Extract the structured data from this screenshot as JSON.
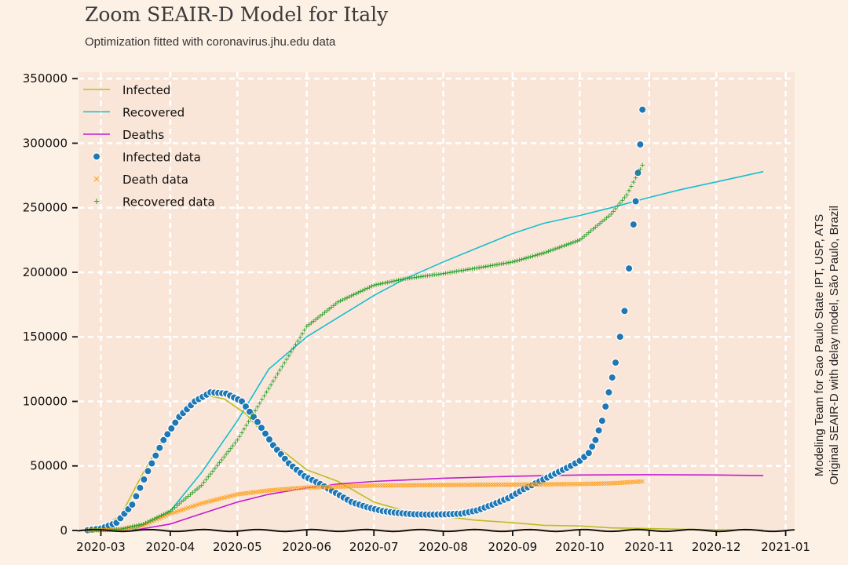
{
  "header": {
    "title": "Zoom SEAIR-D Model for Italy",
    "subtitle": "Optimization fitted with coronavirus.jhu.edu data"
  },
  "side_note": {
    "line1": "Modeling Team for Sao Paulo State IPT, USP, ATS",
    "line2": "Original SEAIR-D with delay model, São Paulo, Brazil"
  },
  "colors": {
    "background": "#fdf1e6",
    "plot_background": "#fae6d8",
    "grid": "#ffffff",
    "infected_model": "#bcbd22",
    "recovered_model": "#17becf",
    "deaths_model": "#c21bd1",
    "infected_data": "#1f77b4",
    "death_data": "#ff9f1c",
    "recovered_data": "#2ca02c"
  },
  "chart_data": {
    "type": "line",
    "title": "Zoom SEAIR-D Model for Italy",
    "subtitle": "Optimization fitted with coronavirus.jhu.edu data",
    "xlabel": "",
    "ylabel": "",
    "x_type": "date",
    "xlim": [
      "2020-02-20",
      "2021-01-05"
    ],
    "ylim": [
      0,
      355000
    ],
    "grid": true,
    "legend_position": "top-left",
    "x_ticks": [
      "2020-03-01",
      "2020-04-01",
      "2020-05-01",
      "2020-06-01",
      "2020-07-01",
      "2020-08-01",
      "2020-09-01",
      "2020-10-01",
      "2020-11-01",
      "2020-12-01",
      "2021-01-01"
    ],
    "x_tick_labels": [
      "2020-03",
      "2020-04",
      "2020-05",
      "2020-06",
      "2020-07",
      "2020-08",
      "2020-09",
      "2020-10",
      "2020-11",
      "2020-12",
      "2021-01"
    ],
    "y_ticks": [
      0,
      50000,
      100000,
      150000,
      200000,
      250000,
      300000,
      350000
    ],
    "y_tick_labels": [
      "0",
      "50000",
      "100000",
      "150000",
      "200000",
      "250000",
      "300000",
      "350000"
    ],
    "series": [
      {
        "name": "Infected",
        "kind": "line",
        "points": [
          [
            "2020-02-22",
            0
          ],
          [
            "2020-03-01",
            2000
          ],
          [
            "2020-03-10",
            12000
          ],
          [
            "2020-03-20",
            45000
          ],
          [
            "2020-04-01",
            80000
          ],
          [
            "2020-04-10",
            98000
          ],
          [
            "2020-04-19",
            104000
          ],
          [
            "2020-04-25",
            102000
          ],
          [
            "2020-05-05",
            90000
          ],
          [
            "2020-05-15",
            70000
          ],
          [
            "2020-06-01",
            47000
          ],
          [
            "2020-06-15",
            38000
          ],
          [
            "2020-07-01",
            22000
          ],
          [
            "2020-07-15",
            15000
          ],
          [
            "2020-08-01",
            11000
          ],
          [
            "2020-08-15",
            8000
          ],
          [
            "2020-09-01",
            6000
          ],
          [
            "2020-09-15",
            4000
          ],
          [
            "2020-10-01",
            3500
          ],
          [
            "2020-10-15",
            2000
          ],
          [
            "2020-11-01",
            1500
          ],
          [
            "2020-11-15",
            1000
          ],
          [
            "2020-12-01",
            600
          ],
          [
            "2020-12-22",
            300
          ]
        ]
      },
      {
        "name": "Recovered",
        "kind": "line",
        "points": [
          [
            "2020-03-15",
            0
          ],
          [
            "2020-04-01",
            15000
          ],
          [
            "2020-04-15",
            45000
          ],
          [
            "2020-05-01",
            85000
          ],
          [
            "2020-05-15",
            125000
          ],
          [
            "2020-06-01",
            150000
          ],
          [
            "2020-06-15",
            165000
          ],
          [
            "2020-07-01",
            182000
          ],
          [
            "2020-07-15",
            195000
          ],
          [
            "2020-08-01",
            208000
          ],
          [
            "2020-08-15",
            218000
          ],
          [
            "2020-09-01",
            230000
          ],
          [
            "2020-09-15",
            238000
          ],
          [
            "2020-10-01",
            244000
          ],
          [
            "2020-10-15",
            250000
          ],
          [
            "2020-11-01",
            258000
          ],
          [
            "2020-11-15",
            264000
          ],
          [
            "2020-12-01",
            270000
          ],
          [
            "2020-12-22",
            278000
          ]
        ]
      },
      {
        "name": "Deaths",
        "kind": "line",
        "points": [
          [
            "2020-03-15",
            0
          ],
          [
            "2020-04-01",
            5000
          ],
          [
            "2020-04-15",
            13000
          ],
          [
            "2020-05-01",
            22000
          ],
          [
            "2020-05-15",
            28000
          ],
          [
            "2020-06-01",
            33000
          ],
          [
            "2020-06-15",
            36000
          ],
          [
            "2020-07-01",
            38000
          ],
          [
            "2020-08-01",
            40500
          ],
          [
            "2020-09-01",
            42000
          ],
          [
            "2020-10-01",
            43000
          ],
          [
            "2020-11-01",
            43200
          ],
          [
            "2020-12-01",
            43000
          ],
          [
            "2020-12-22",
            42500
          ]
        ]
      },
      {
        "name": "Infected data",
        "kind": "scatter-dot",
        "points": [
          [
            "2020-02-24",
            200
          ],
          [
            "2020-03-01",
            1500
          ],
          [
            "2020-03-08",
            6000
          ],
          [
            "2020-03-15",
            20000
          ],
          [
            "2020-03-22",
            46000
          ],
          [
            "2020-03-29",
            70000
          ],
          [
            "2020-04-05",
            88000
          ],
          [
            "2020-04-12",
            100000
          ],
          [
            "2020-04-19",
            107000
          ],
          [
            "2020-04-26",
            106000
          ],
          [
            "2020-05-03",
            100000
          ],
          [
            "2020-05-10",
            84000
          ],
          [
            "2020-05-17",
            66000
          ],
          [
            "2020-05-24",
            52000
          ],
          [
            "2020-05-31",
            42000
          ],
          [
            "2020-06-07",
            36000
          ],
          [
            "2020-06-14",
            29000
          ],
          [
            "2020-06-21",
            22000
          ],
          [
            "2020-06-28",
            18000
          ],
          [
            "2020-07-05",
            15000
          ],
          [
            "2020-07-12",
            13500
          ],
          [
            "2020-07-19",
            12500
          ],
          [
            "2020-07-26",
            12300
          ],
          [
            "2020-08-02",
            12500
          ],
          [
            "2020-08-09",
            13000
          ],
          [
            "2020-08-16",
            15500
          ],
          [
            "2020-08-23",
            20000
          ],
          [
            "2020-08-30",
            25000
          ],
          [
            "2020-09-06",
            32000
          ],
          [
            "2020-09-13",
            38000
          ],
          [
            "2020-09-20",
            44000
          ],
          [
            "2020-09-27",
            50000
          ],
          [
            "2020-10-01",
            54000
          ],
          [
            "2020-10-05",
            60000
          ],
          [
            "2020-10-08",
            70000
          ],
          [
            "2020-10-11",
            85000
          ],
          [
            "2020-10-14",
            107000
          ],
          [
            "2020-10-17",
            130000
          ],
          [
            "2020-10-19",
            150000
          ],
          [
            "2020-10-21",
            170000
          ],
          [
            "2020-10-23",
            203000
          ],
          [
            "2020-10-25",
            237000
          ],
          [
            "2020-10-26",
            255000
          ],
          [
            "2020-10-27",
            277000
          ],
          [
            "2020-10-28",
            299000
          ],
          [
            "2020-10-29",
            326000
          ]
        ]
      },
      {
        "name": "Death data",
        "kind": "scatter-x",
        "points": [
          [
            "2020-02-24",
            0
          ],
          [
            "2020-03-10",
            600
          ],
          [
            "2020-03-20",
            4000
          ],
          [
            "2020-04-01",
            13000
          ],
          [
            "2020-04-15",
            21000
          ],
          [
            "2020-05-01",
            28000
          ],
          [
            "2020-05-15",
            31000
          ],
          [
            "2020-06-01",
            33300
          ],
          [
            "2020-07-01",
            34800
          ],
          [
            "2020-08-01",
            35200
          ],
          [
            "2020-09-01",
            35500
          ],
          [
            "2020-10-01",
            36000
          ],
          [
            "2020-10-15",
            36500
          ],
          [
            "2020-10-29",
            38000
          ]
        ]
      },
      {
        "name": "Recovered data",
        "kind": "scatter-plus",
        "points": [
          [
            "2020-02-24",
            0
          ],
          [
            "2020-03-10",
            1000
          ],
          [
            "2020-03-20",
            5000
          ],
          [
            "2020-04-01",
            15000
          ],
          [
            "2020-04-15",
            35000
          ],
          [
            "2020-05-01",
            70000
          ],
          [
            "2020-05-15",
            110000
          ],
          [
            "2020-06-01",
            158000
          ],
          [
            "2020-06-15",
            177000
          ],
          [
            "2020-07-01",
            190000
          ],
          [
            "2020-07-15",
            195000
          ],
          [
            "2020-08-01",
            199000
          ],
          [
            "2020-08-15",
            203000
          ],
          [
            "2020-09-01",
            208000
          ],
          [
            "2020-09-15",
            215000
          ],
          [
            "2020-10-01",
            225000
          ],
          [
            "2020-10-15",
            245000
          ],
          [
            "2020-10-22",
            260000
          ],
          [
            "2020-10-29",
            283000
          ]
        ]
      }
    ]
  }
}
